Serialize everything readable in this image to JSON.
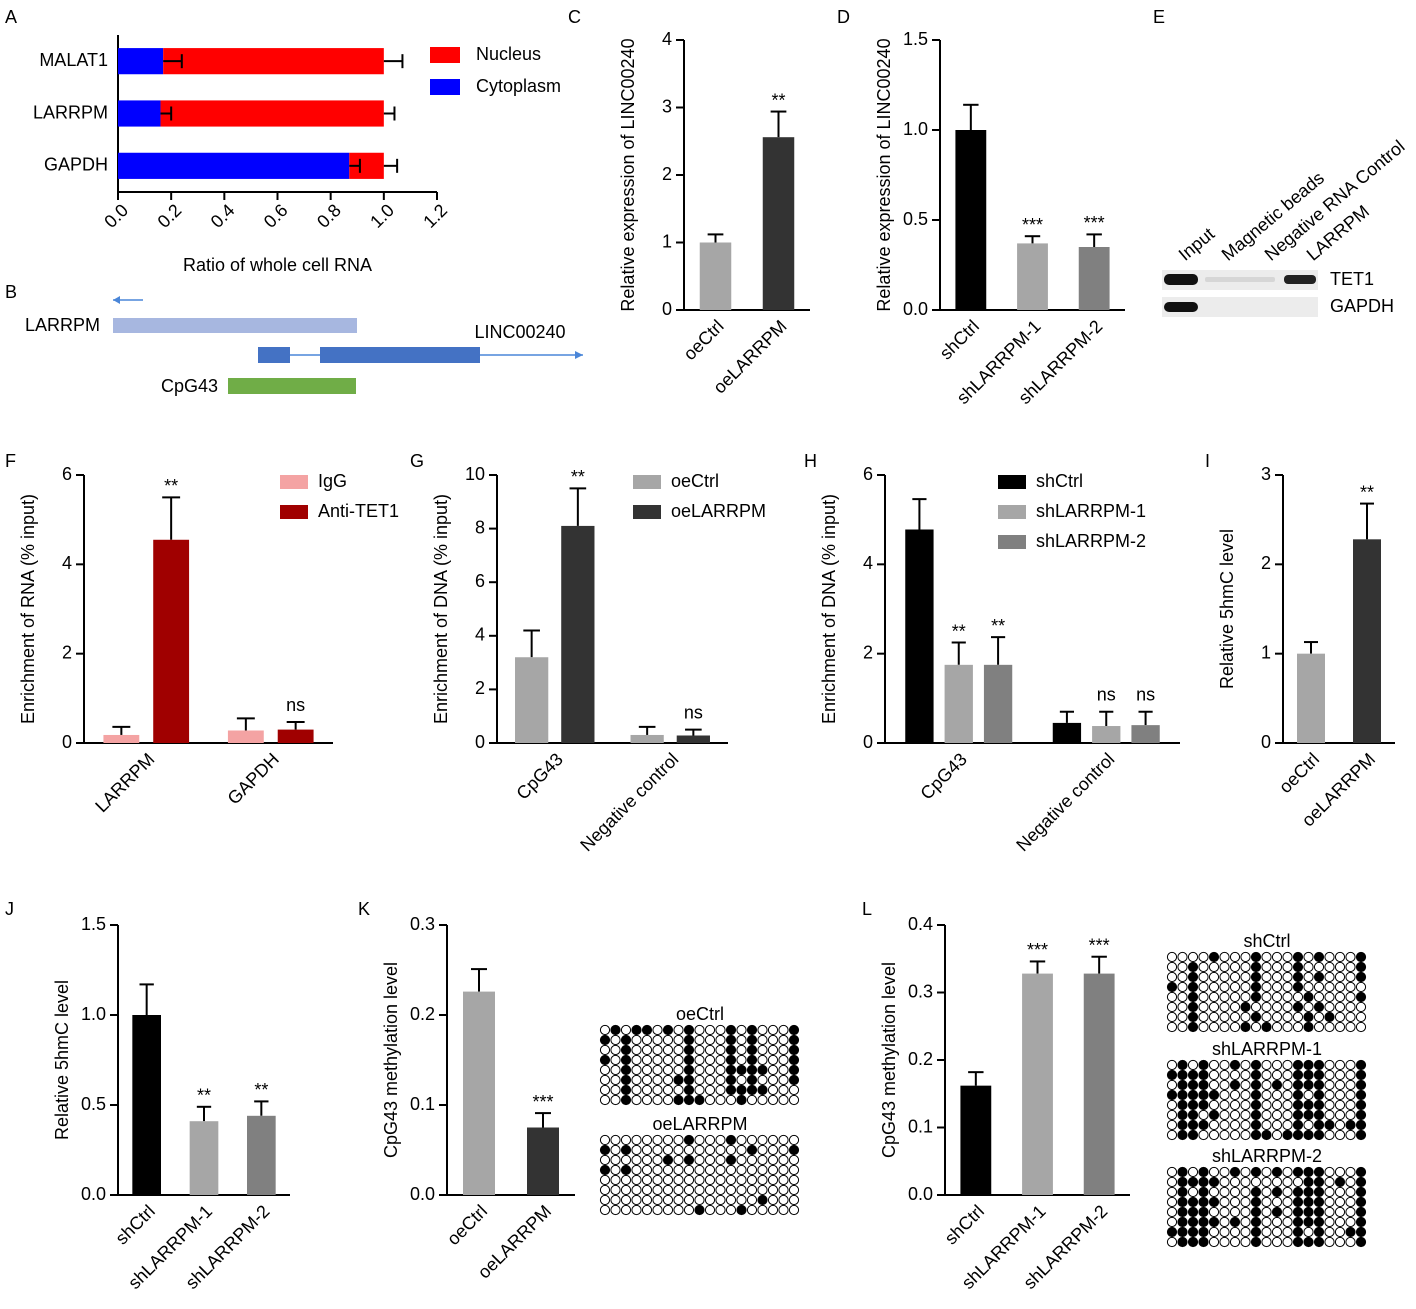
{
  "chart_data": [
    {
      "type": "hbar-stacked",
      "label": "A",
      "xlabel": "Ratio of whole cell RNA",
      "categories": [
        "MALAT1",
        "LARRPM",
        "GAPDH"
      ],
      "series": [
        {
          "name": "Cytoplasm",
          "color": "#0000ff",
          "values": [
            0.17,
            0.16,
            0.87
          ],
          "errors": [
            0.07,
            0.04,
            0.04
          ]
        },
        {
          "name": "Nucleus",
          "color": "#ff0000",
          "values": [
            0.83,
            0.84,
            0.13
          ],
          "errors": [
            0.07,
            0.04,
            0.05
          ]
        }
      ],
      "xlim": [
        0,
        1.2
      ],
      "xticks": [
        {
          "value": 0,
          "label": "0.0"
        },
        0.2,
        0.4,
        0.6,
        0.8,
        {
          "value": 1,
          "label": "1.0"
        },
        1.2
      ]
    },
    {
      "type": "gene-diagram",
      "label": "B",
      "annotations": [
        "LARRPM",
        "LINC00240",
        "CpG43"
      ]
    },
    {
      "type": "bar",
      "label": "C",
      "ylabel": "Relative expression of LINC00240",
      "categories": [
        "oeCtrl",
        "oeLARRPM"
      ],
      "values": [
        1.0,
        2.56
      ],
      "errors": [
        0.12,
        0.38
      ],
      "colors": [
        "#a6a6a6",
        "#333333"
      ],
      "significance": [
        null,
        "**"
      ],
      "ylim": [
        0,
        4
      ],
      "yticks": [
        0,
        1,
        2,
        3,
        4
      ]
    },
    {
      "type": "bar",
      "label": "D",
      "ylabel": "Relative expression of LINC00240",
      "categories": [
        "shCtrl",
        "shLARRPM-1",
        "shLARRPM-2"
      ],
      "values": [
        1.0,
        0.37,
        0.35
      ],
      "errors": [
        0.14,
        0.04,
        0.07
      ],
      "colors": [
        "#000000",
        "#a6a6a6",
        "#808080"
      ],
      "significance": [
        null,
        "***",
        "***"
      ],
      "ylim": [
        0,
        1.5
      ],
      "yticks": [
        {
          "value": 0,
          "label": "0.0"
        },
        0.5,
        {
          "value": 1,
          "label": "1.0"
        },
        1.5
      ]
    },
    {
      "type": "blot",
      "label": "E",
      "lanes": [
        "Input",
        "Magnetic beads",
        "Negative RNA Control",
        "LARRPM"
      ],
      "rows": [
        "TET1",
        "GAPDH"
      ]
    },
    {
      "type": "grouped-bar",
      "label": "F",
      "ylabel": "Enrichment of RNA (% input)",
      "categories": [
        "LARRPM",
        "GAPDH"
      ],
      "series": [
        {
          "name": "IgG",
          "color": "#f4a3a3",
          "values": [
            0.18,
            0.28
          ],
          "errors": [
            0.18,
            0.27
          ]
        },
        {
          "name": "Anti-TET1",
          "color": "#a00000",
          "values": [
            4.55,
            0.3
          ],
          "errors": [
            0.95,
            0.17
          ],
          "significance": [
            "**",
            "ns"
          ]
        }
      ],
      "ylim": [
        0,
        6
      ],
      "yticks": [
        0,
        2,
        4,
        6
      ]
    },
    {
      "type": "grouped-bar",
      "label": "G",
      "ylabel": "Enrichment of DNA (% input)",
      "categories": [
        "CpG43",
        "Negative control"
      ],
      "series": [
        {
          "name": "oeCtrl",
          "color": "#a6a6a6",
          "values": [
            3.2,
            0.3
          ],
          "errors": [
            1.0,
            0.3
          ]
        },
        {
          "name": "oeLARRPM",
          "color": "#333333",
          "values": [
            8.1,
            0.28
          ],
          "errors": [
            1.4,
            0.22
          ],
          "significance": [
            "**",
            "ns"
          ]
        }
      ],
      "ylim": [
        0,
        10
      ],
      "yticks": [
        0,
        2,
        4,
        6,
        8,
        10
      ]
    },
    {
      "type": "grouped-bar",
      "label": "H",
      "ylabel": "Enrichment of DNA (% input)",
      "categories": [
        "CpG43",
        "Negative control"
      ],
      "series": [
        {
          "name": "shCtrl",
          "color": "#000000",
          "values": [
            4.78,
            0.45
          ],
          "errors": [
            0.68,
            0.25
          ]
        },
        {
          "name": "shLARRPM-1",
          "color": "#a6a6a6",
          "values": [
            1.75,
            0.38
          ],
          "errors": [
            0.5,
            0.32
          ],
          "significance": [
            "**",
            "ns"
          ]
        },
        {
          "name": "shLARRPM-2",
          "color": "#808080",
          "values": [
            1.75,
            0.4
          ],
          "errors": [
            0.62,
            0.3
          ],
          "significance": [
            "**",
            "ns"
          ]
        }
      ],
      "ylim": [
        0,
        6
      ],
      "yticks": [
        0,
        2,
        4,
        6
      ]
    },
    {
      "type": "bar",
      "label": "I",
      "ylabel": "Relative 5hmC level",
      "categories": [
        "oeCtrl",
        "oeLARRPM"
      ],
      "values": [
        1.0,
        2.28
      ],
      "errors": [
        0.13,
        0.4
      ],
      "colors": [
        "#a6a6a6",
        "#333333"
      ],
      "significance": [
        null,
        "**"
      ],
      "ylim": [
        0,
        3
      ],
      "yticks": [
        0,
        1,
        2,
        3
      ]
    },
    {
      "type": "bar",
      "label": "J",
      "ylabel": "Relative 5hmC level",
      "categories": [
        "shCtrl",
        "shLARRPM-1",
        "shLARRPM-2"
      ],
      "values": [
        1.0,
        0.41,
        0.44
      ],
      "errors": [
        0.17,
        0.08,
        0.08
      ],
      "colors": [
        "#000000",
        "#a6a6a6",
        "#808080"
      ],
      "significance": [
        null,
        "**",
        "**"
      ],
      "ylim": [
        0,
        1.5
      ],
      "yticks": [
        {
          "value": 0,
          "label": "0.0"
        },
        0.5,
        {
          "value": 1,
          "label": "1.0"
        },
        1.5
      ]
    },
    {
      "type": "bar",
      "label": "K",
      "ylabel": "CpG43 methylation level",
      "categories": [
        "oeCtrl",
        "oeLARRPM"
      ],
      "values": [
        0.226,
        0.075
      ],
      "errors": [
        0.025,
        0.016
      ],
      "colors": [
        "#a6a6a6",
        "#333333"
      ],
      "significance": [
        null,
        "***"
      ],
      "ylim": [
        0,
        0.3
      ],
      "yticks": [
        {
          "value": 0,
          "label": "0.0"
        },
        0.1,
        0.2,
        0.3
      ],
      "groups": [
        "oeCtrl",
        "oeLARRPM"
      ]
    },
    {
      "type": "bar",
      "label": "L",
      "ylabel": "CpG43 methylation level",
      "categories": [
        "shCtrl",
        "shLARRPM-1",
        "shLARRPM-2"
      ],
      "values": [
        0.162,
        0.328,
        0.328
      ],
      "errors": [
        0.02,
        0.018,
        0.025
      ],
      "colors": [
        "#000000",
        "#a6a6a6",
        "#808080"
      ],
      "significance": [
        null,
        "***",
        "***"
      ],
      "ylim": [
        0,
        0.4
      ],
      "yticks": [
        {
          "value": 0,
          "label": "0.0"
        },
        0.1,
        0.2,
        0.3,
        0.4
      ],
      "groups": [
        "shCtrl",
        "shLARRPM-1",
        "shLARRPM-2"
      ]
    }
  ]
}
